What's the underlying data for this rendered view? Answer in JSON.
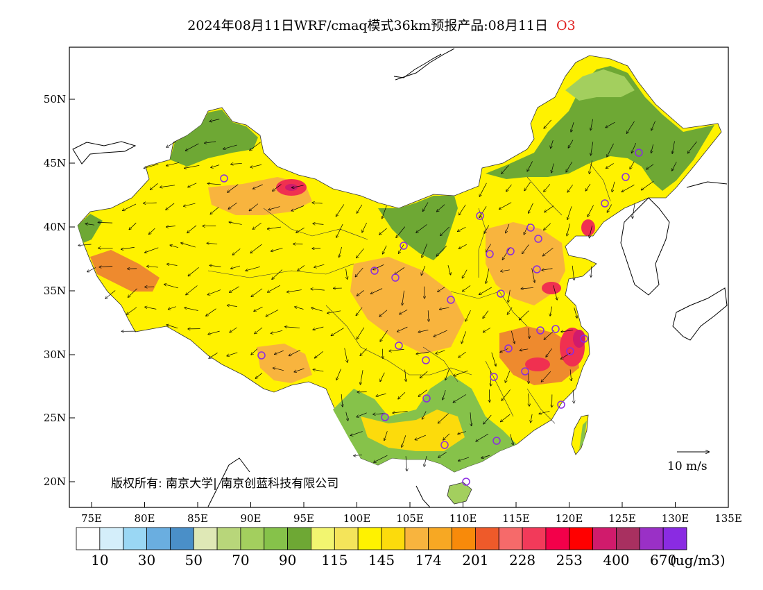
{
  "title": {
    "main": "2024年08月11日WRF/cmaq模式36km预报产品:08月11日",
    "species": "O3"
  },
  "map": {
    "lat_labels": [
      "50N",
      "45N",
      "40N",
      "35N",
      "30N",
      "25N",
      "20N"
    ],
    "lon_labels": [
      "75E",
      "80E",
      "85E",
      "90E",
      "95E",
      "100E",
      "105E",
      "110E",
      "115E",
      "120E",
      "125E",
      "130E",
      "135E"
    ],
    "copyright": "版权所有: 南京大学| 南京创蓝科技有限公司",
    "wind_reference_label": "10  m/s",
    "colors": {
      "ocean": "#ffffff",
      "low_green": "#6ea834",
      "mid_green": "#a3cf5e",
      "yellow": "#fff200",
      "light_yellow": "#f4ec5b",
      "orange": "#f8b43e",
      "dark_orange": "#ee8a2e",
      "red": "#f03050",
      "magenta": "#d01b6c",
      "station_marker": "#8a2be2"
    }
  },
  "legend": {
    "colors": [
      "#ffffff",
      "#d4eefa",
      "#9ad7f4",
      "#6aaee0",
      "#4a8fc8",
      "#dfe8b6",
      "#b8d67a",
      "#a3cf5e",
      "#86c24a",
      "#6ea834",
      "#f2f570",
      "#f4e45a",
      "#fff200",
      "#fcdb0c",
      "#f8b43e",
      "#f7a823",
      "#f88a0a",
      "#ee5a2a",
      "#f66a6a",
      "#f23a5a",
      "#f3004a",
      "#ff0000",
      "#d01b6c",
      "#a83060",
      "#9a30c6",
      "#8a2be2"
    ],
    "labels": [
      "10",
      "30",
      "50",
      "70",
      "90",
      "115",
      "145",
      "174",
      "201",
      "228",
      "253",
      "400",
      "670"
    ],
    "units": "(ug/m3)"
  }
}
